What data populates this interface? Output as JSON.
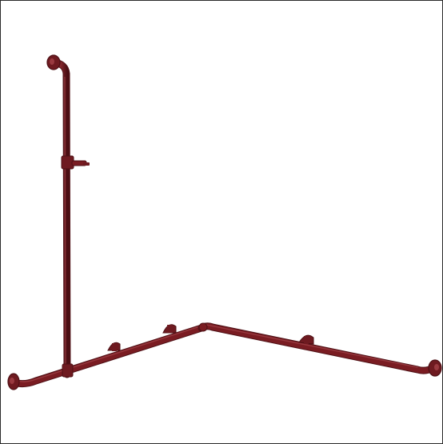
{
  "image": {
    "subject": "grab-bar-with-shower-rail-icon",
    "finish_color": "#7a1c22",
    "shadow_color": "#4e1015",
    "highlight_color": "#a2444a",
    "background": "#ffffff",
    "border_color": "#2b2b2b"
  }
}
